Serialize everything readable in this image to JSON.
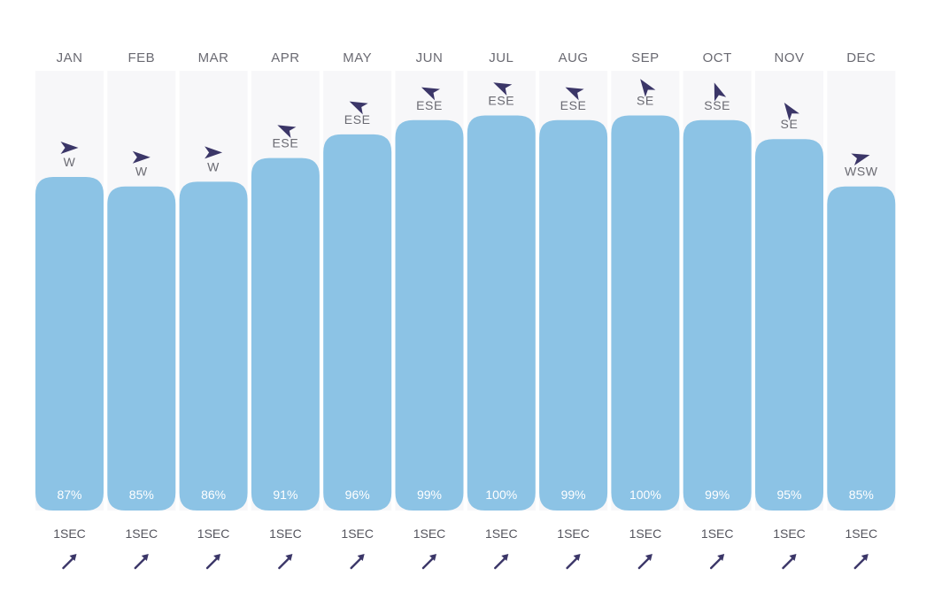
{
  "colors": {
    "bar": "#8cc3e5",
    "column_bg": "#f7f7f9",
    "arrow": "#3b3668",
    "text": "#6a6a72",
    "bar_text": "#ffffff"
  },
  "chart_data": {
    "type": "bar",
    "categories": [
      "JAN",
      "FEB",
      "MAR",
      "APR",
      "MAY",
      "JUN",
      "JUL",
      "AUG",
      "SEP",
      "OCT",
      "NOV",
      "DEC"
    ],
    "values": [
      87,
      85,
      86,
      91,
      96,
      99,
      100,
      99,
      100,
      99,
      95,
      85
    ],
    "value_labels": [
      "87%",
      "85%",
      "86%",
      "91%",
      "96%",
      "99%",
      "100%",
      "99%",
      "100%",
      "99%",
      "95%",
      "85%"
    ],
    "wind_direction": [
      "W",
      "W",
      "W",
      "ESE",
      "ESE",
      "ESE",
      "ESE",
      "ESE",
      "SE",
      "SSE",
      "SE",
      "WSW"
    ],
    "wind_arrow_icon": "wind-direction-arrow-icon",
    "swell_period": [
      "1SEC",
      "1SEC",
      "1SEC",
      "1SEC",
      "1SEC",
      "1SEC",
      "1SEC",
      "1SEC",
      "1SEC",
      "1SEC",
      "1SEC",
      "1SEC"
    ],
    "swell_arrow_icon": "swell-direction-arrow-icon",
    "ylim": [
      0,
      100
    ],
    "grid": false,
    "title": "",
    "xlabel": "",
    "ylabel": ""
  }
}
